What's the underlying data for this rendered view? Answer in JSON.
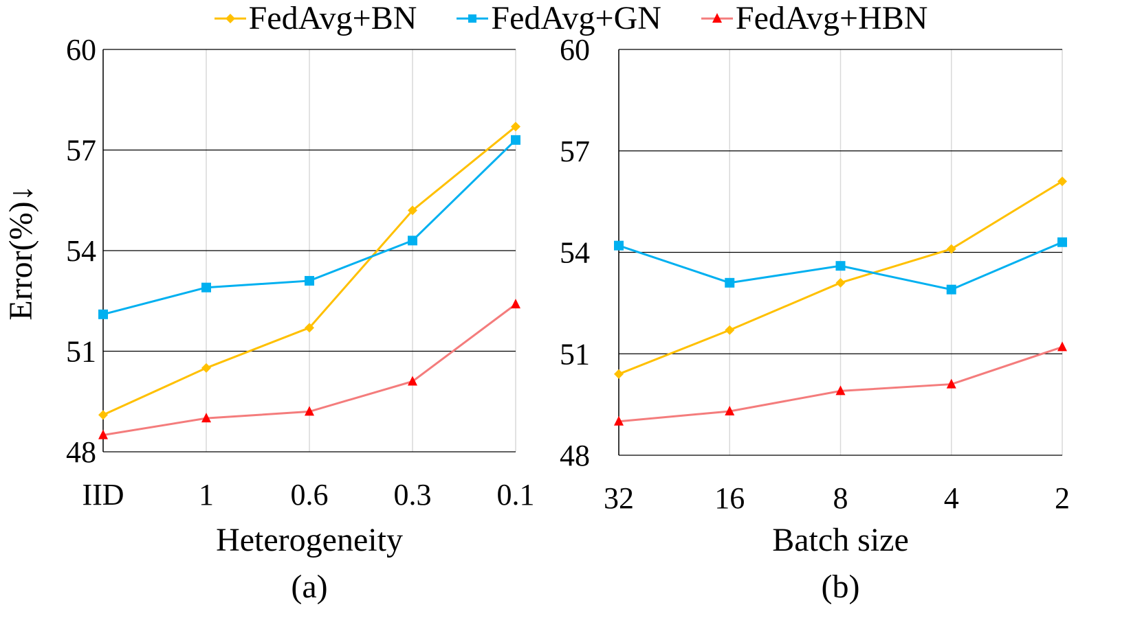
{
  "ylabel": "Error(%)↓",
  "colors": {
    "bn": "#FFC000",
    "gn": "#00B0F0",
    "hbn_line": "#F47C7C",
    "hbn_marker": "#FF0000",
    "grid": "#000000",
    "vgrid": "#D9D9D9"
  },
  "legend": [
    {
      "name": "FedAvg+BN",
      "marker": "diamond",
      "color": "#FFC000"
    },
    {
      "name": "FedAvg+GN",
      "marker": "square",
      "color": "#00B0F0"
    },
    {
      "name": "FedAvg+HBN",
      "marker": "triangle",
      "color": "#FF0000"
    }
  ],
  "chart_data": [
    {
      "type": "line",
      "subfigure_label": "(a)",
      "xlabel": "Heterogeneity",
      "ylabel": "Error(%)↓",
      "categories": [
        "IID",
        "1",
        "0.6",
        "0.3",
        "0.1"
      ],
      "ylim": [
        48,
        60
      ],
      "yticks": [
        "48",
        "51",
        "54",
        "57",
        "60"
      ],
      "grid": "horizontal",
      "series": [
        {
          "name": "FedAvg+BN",
          "values": [
            49.1,
            50.5,
            51.7,
            55.2,
            57.7
          ]
        },
        {
          "name": "FedAvg+GN",
          "values": [
            52.1,
            52.9,
            53.1,
            54.3,
            57.3
          ]
        },
        {
          "name": "FedAvg+HBN",
          "values": [
            48.5,
            49.0,
            49.2,
            50.1,
            52.4
          ]
        }
      ]
    },
    {
      "type": "line",
      "subfigure_label": "(b)",
      "xlabel": "Batch size",
      "ylabel": "",
      "categories": [
        "32",
        "16",
        "8",
        "4",
        "2"
      ],
      "ylim": [
        48,
        60
      ],
      "yticks": [
        "48",
        "51",
        "54",
        "57",
        "60"
      ],
      "grid": "horizontal",
      "series": [
        {
          "name": "FedAvg+BN",
          "values": [
            50.4,
            51.7,
            53.1,
            54.1,
            56.1
          ]
        },
        {
          "name": "FedAvg+GN",
          "values": [
            54.2,
            53.1,
            53.6,
            52.9,
            54.3
          ]
        },
        {
          "name": "FedAvg+HBN",
          "values": [
            49.0,
            49.3,
            49.9,
            50.1,
            51.2
          ]
        }
      ]
    }
  ]
}
